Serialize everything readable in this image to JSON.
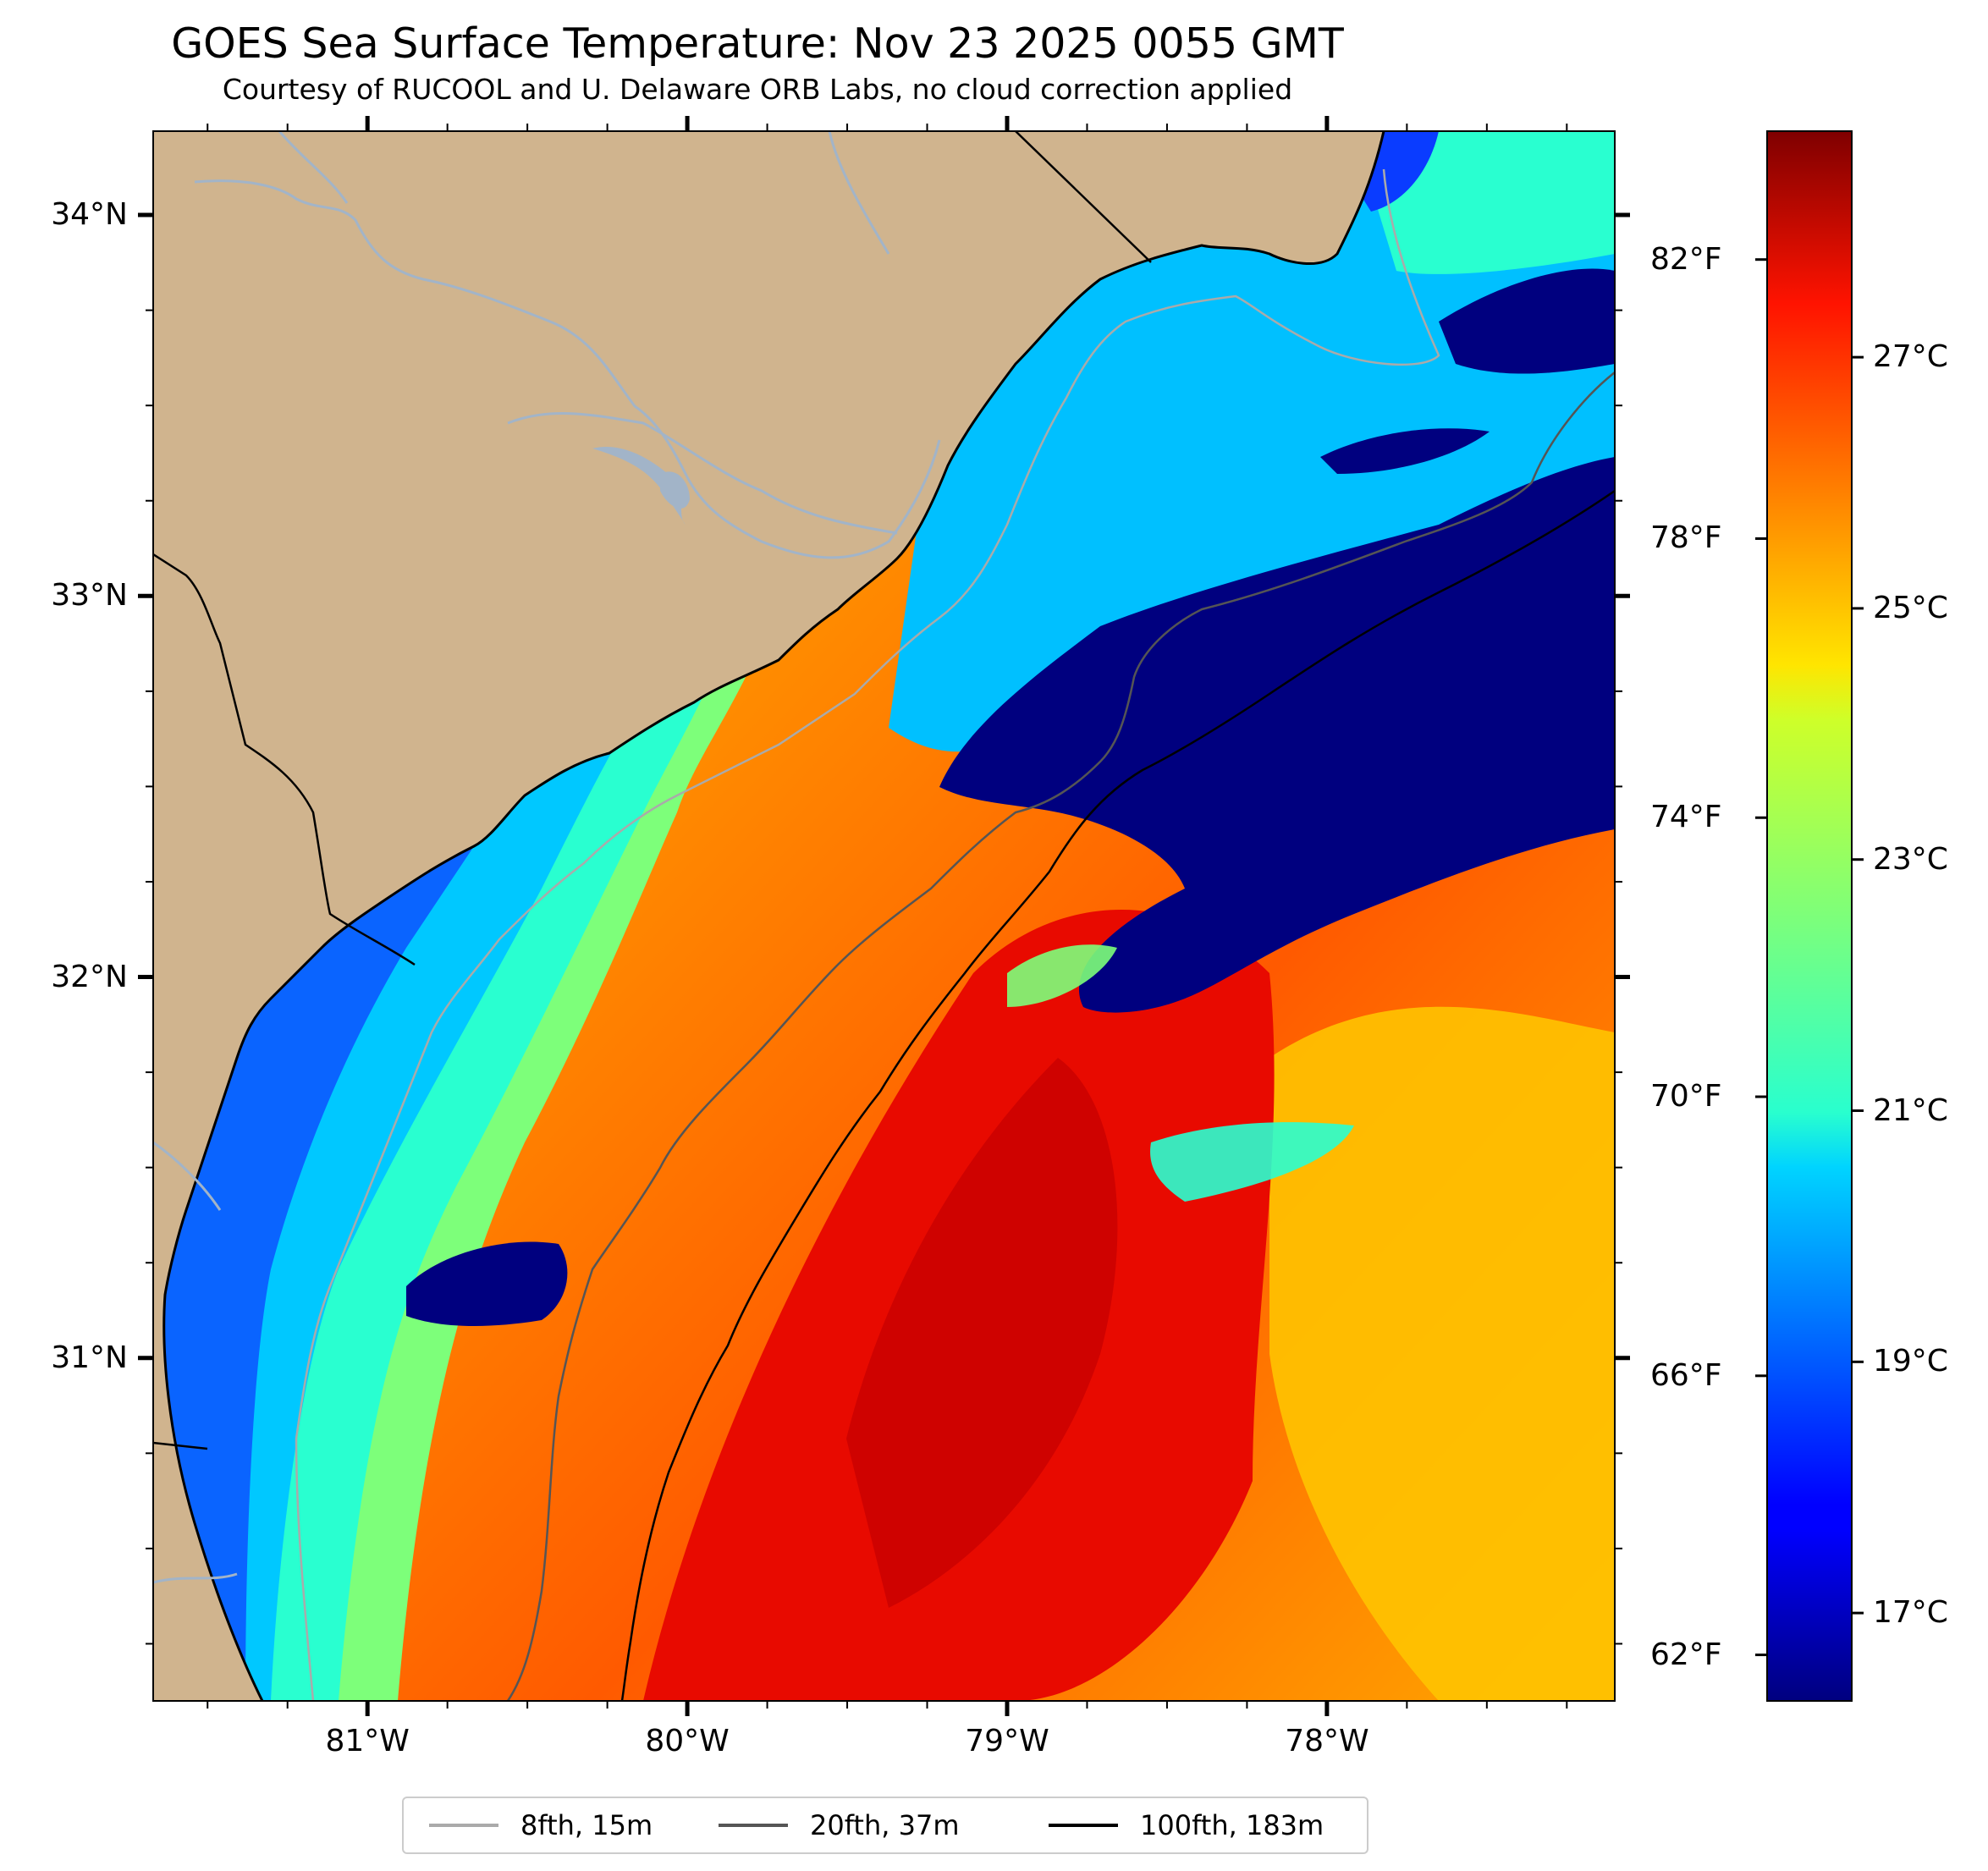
{
  "title": "GOES Sea Surface Temperature: Nov 23 2025 0055 GMT",
  "subtitle": "Courtesy of RUCOOL and U. Delaware ORB Labs, no cloud correction applied",
  "map": {
    "lon_range": [
      -81.67,
      -77.1
    ],
    "lat_range": [
      30.1,
      34.22
    ],
    "land_color": "#d0b48e",
    "river_color": "#a2b4c8",
    "lat_ticks": [
      {
        "value": 34,
        "label": "34°N"
      },
      {
        "value": 33,
        "label": "33°N"
      },
      {
        "value": 32,
        "label": "32°N"
      },
      {
        "value": 31,
        "label": "31°N"
      }
    ],
    "lon_ticks": [
      {
        "value": -81,
        "label": "81°W"
      },
      {
        "value": -80,
        "label": "80°W"
      },
      {
        "value": -79,
        "label": "79°W"
      },
      {
        "value": -78,
        "label": "78°W"
      }
    ]
  },
  "colorbar": {
    "colormap": "jet",
    "range_c": [
      16.3,
      28.8
    ],
    "f_ticks": [
      {
        "value": 82,
        "label": "82°F"
      },
      {
        "value": 78,
        "label": "78°F"
      },
      {
        "value": 74,
        "label": "74°F"
      },
      {
        "value": 70,
        "label": "70°F"
      },
      {
        "value": 66,
        "label": "66°F"
      },
      {
        "value": 62,
        "label": "62°F"
      }
    ],
    "c_ticks": [
      {
        "value": 27,
        "label": "27°C"
      },
      {
        "value": 25,
        "label": "25°C"
      },
      {
        "value": 23,
        "label": "23°C"
      },
      {
        "value": 21,
        "label": "21°C"
      },
      {
        "value": 19,
        "label": "19°C"
      },
      {
        "value": 17,
        "label": "17°C"
      }
    ]
  },
  "legend": [
    {
      "label": "8fth, 15m",
      "color": "#aaaaaa"
    },
    {
      "label": "20fth, 37m",
      "color": "#555555"
    },
    {
      "label": "100fth, 183m",
      "color": "#000000"
    }
  ]
}
